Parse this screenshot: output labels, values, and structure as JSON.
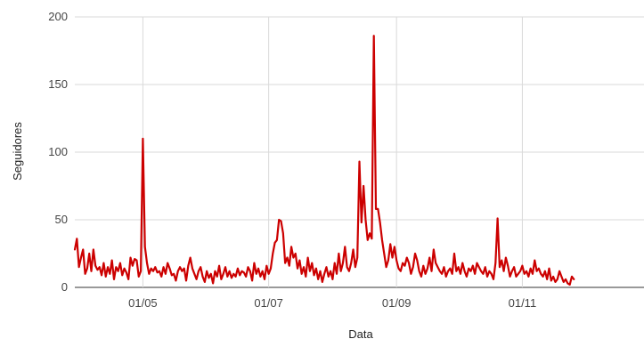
{
  "chart_data": {
    "type": "line",
    "title": "",
    "xlabel": "Data",
    "ylabel": "Seguidores",
    "ylim": [
      0,
      200
    ],
    "yticks": [
      0,
      50,
      100,
      150,
      200
    ],
    "xlim": [
      "2023-03-29",
      "2023-12-30"
    ],
    "xticks": [
      {
        "date": "2023-05-01",
        "label": "01/05"
      },
      {
        "date": "2023-07-01",
        "label": "01/07"
      },
      {
        "date": "2023-09-01",
        "label": "01/09"
      },
      {
        "date": "2023-11-01",
        "label": "01/11"
      }
    ],
    "grid": true,
    "line_color": "#cc0000",
    "series": [
      {
        "start_date": "2023-03-29",
        "values": [
          28,
          36,
          15,
          22,
          28,
          10,
          14,
          25,
          12,
          28,
          16,
          13,
          15,
          9,
          18,
          8,
          15,
          10,
          20,
          6,
          15,
          12,
          18,
          9,
          14,
          11,
          6,
          22,
          16,
          21,
          20,
          8,
          12,
          110,
          30,
          18,
          10,
          14,
          12,
          15,
          11,
          12,
          8,
          15,
          10,
          18,
          14,
          9,
          10,
          5,
          12,
          15,
          12,
          14,
          5,
          16,
          22,
          14,
          10,
          6,
          12,
          15,
          8,
          4,
          12,
          7,
          10,
          3,
          12,
          8,
          16,
          6,
          10,
          15,
          8,
          12,
          7,
          10,
          8,
          14,
          9,
          12,
          11,
          8,
          15,
          12,
          5,
          18,
          10,
          14,
          8,
          12,
          6,
          16,
          10,
          14,
          25,
          33,
          35,
          50,
          49,
          40,
          18,
          22,
          16,
          30,
          22,
          25,
          14,
          20,
          10,
          15,
          8,
          22,
          12,
          18,
          9,
          14,
          6,
          12,
          4,
          10,
          15,
          8,
          12,
          6,
          18,
          10,
          25,
          12,
          18,
          30,
          15,
          12,
          18,
          28,
          15,
          22,
          93,
          48,
          75,
          50,
          35,
          40,
          36,
          186,
          58,
          58,
          48,
          35,
          25,
          15,
          20,
          32,
          22,
          30,
          20,
          14,
          12,
          18,
          16,
          22,
          18,
          10,
          15,
          25,
          20,
          12,
          8,
          16,
          10,
          14,
          22,
          12,
          28,
          18,
          15,
          12,
          10,
          15,
          8,
          12,
          14,
          10,
          25,
          12,
          15,
          10,
          18,
          12,
          8,
          14,
          12,
          16,
          10,
          18,
          15,
          12,
          10,
          15,
          8,
          12,
          10,
          6,
          18,
          51,
          15,
          20,
          12,
          22,
          16,
          8,
          12,
          15,
          8,
          10,
          12,
          16,
          10,
          12,
          8,
          14,
          10,
          20,
          12,
          14,
          10,
          8,
          12,
          6,
          14,
          5,
          8,
          4,
          6,
          12,
          8,
          4,
          6,
          3,
          2,
          8,
          6
        ]
      }
    ]
  }
}
